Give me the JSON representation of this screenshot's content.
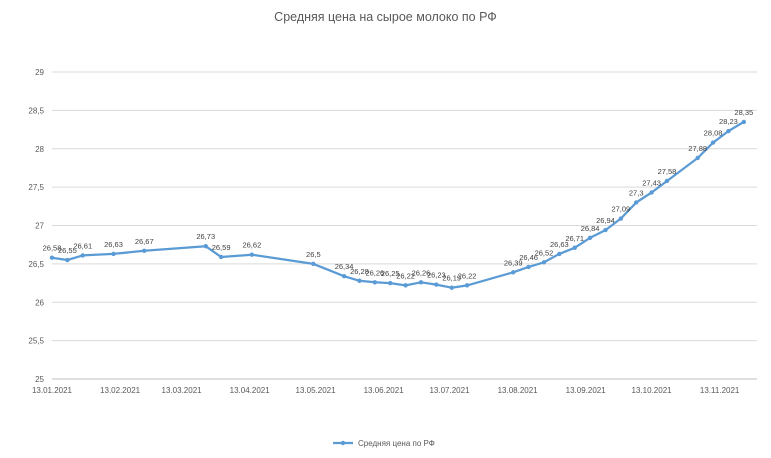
{
  "chart_data": {
    "type": "line",
    "title": "Средняя цена на сырое молоко по РФ",
    "xlabel": "",
    "ylabel": "",
    "ylim": [
      25,
      29
    ],
    "y_ticks": [
      "25",
      "25,5",
      "26",
      "26,5",
      "27",
      "27,5",
      "28",
      "28,5",
      "29"
    ],
    "x_tick_labels": [
      "13.01.2021",
      "13.02.2021",
      "13.03.2021",
      "13.04.2021",
      "13.05.2021",
      "13.06.2021",
      "13.07.2021",
      "13.08.2021",
      "13.09.2021",
      "13.10.2021",
      "13.11.2021"
    ],
    "grid": true,
    "legend": "bottom",
    "color": "#5B9BD5",
    "series": [
      {
        "name": "Средняя цена по РФ",
        "points": [
          {
            "x": "2021-01-13",
            "y": 26.58,
            "label": "26,58"
          },
          {
            "x": "2021-01-20",
            "y": 26.55,
            "label": "26,55"
          },
          {
            "x": "2021-01-27",
            "y": 26.61,
            "label": "26,61"
          },
          {
            "x": "2021-02-10",
            "y": 26.63,
            "label": "26,63"
          },
          {
            "x": "2021-02-24",
            "y": 26.67,
            "label": "26,67"
          },
          {
            "x": "2021-03-24",
            "y": 26.73,
            "label": "26,73"
          },
          {
            "x": "2021-03-31",
            "y": 26.59,
            "label": "26,59"
          },
          {
            "x": "2021-04-14",
            "y": 26.62,
            "label": "26,62"
          },
          {
            "x": "2021-05-12",
            "y": 26.5,
            "label": "26,5"
          },
          {
            "x": "2021-05-26",
            "y": 26.34,
            "label": "26,34"
          },
          {
            "x": "2021-06-02",
            "y": 26.28,
            "label": "26,28"
          },
          {
            "x": "2021-06-09",
            "y": 26.26,
            "label": "26,26"
          },
          {
            "x": "2021-06-16",
            "y": 26.25,
            "label": "26,25"
          },
          {
            "x": "2021-06-23",
            "y": 26.22,
            "label": "26,22"
          },
          {
            "x": "2021-06-30",
            "y": 26.26,
            "label": "26,26"
          },
          {
            "x": "2021-07-07",
            "y": 26.23,
            "label": "26,23"
          },
          {
            "x": "2021-07-14",
            "y": 26.19,
            "label": "26,19"
          },
          {
            "x": "2021-07-21",
            "y": 26.22,
            "label": "26,22"
          },
          {
            "x": "2021-08-11",
            "y": 26.39,
            "label": "26,39"
          },
          {
            "x": "2021-08-18",
            "y": 26.46,
            "label": "26,46"
          },
          {
            "x": "2021-08-25",
            "y": 26.52,
            "label": "26,52"
          },
          {
            "x": "2021-09-01",
            "y": 26.63,
            "label": "26,63"
          },
          {
            "x": "2021-09-08",
            "y": 26.71,
            "label": "26,71"
          },
          {
            "x": "2021-09-15",
            "y": 26.84,
            "label": "26,84"
          },
          {
            "x": "2021-09-22",
            "y": 26.94,
            "label": "26,94"
          },
          {
            "x": "2021-09-29",
            "y": 27.09,
            "label": "27,09"
          },
          {
            "x": "2021-10-06",
            "y": 27.3,
            "label": "27,3"
          },
          {
            "x": "2021-10-13",
            "y": 27.43,
            "label": "27,43"
          },
          {
            "x": "2021-10-20",
            "y": 27.58,
            "label": "27,58"
          },
          {
            "x": "2021-11-03",
            "y": 27.88,
            "label": "27,88"
          },
          {
            "x": "2021-11-10",
            "y": 28.08,
            "label": "28,08"
          },
          {
            "x": "2021-11-17",
            "y": 28.23,
            "label": "28,23"
          },
          {
            "x": "2021-11-24",
            "y": 28.35,
            "label": "28,35"
          }
        ]
      }
    ]
  }
}
